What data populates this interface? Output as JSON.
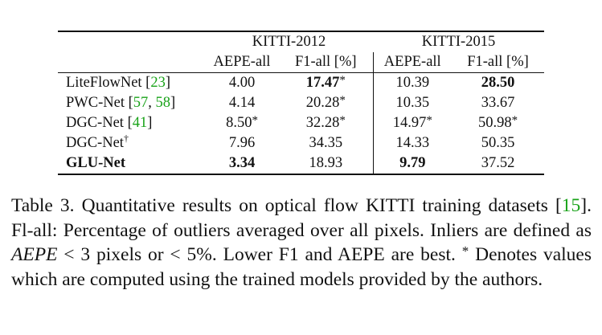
{
  "table": {
    "groups": [
      {
        "label": "KITTI-2012"
      },
      {
        "label": "KITTI-2015"
      }
    ],
    "subheaders": [
      "AEPE-all",
      "F1-all [%]",
      "AEPE-all",
      "F1-all [%]"
    ],
    "rows": [
      {
        "method": "LiteFlowNet",
        "cites": [
          "23"
        ],
        "dagger": false,
        "bold_method": false,
        "cells": [
          {
            "v": "4.00",
            "b": false,
            "s": false
          },
          {
            "v": "17.47",
            "b": true,
            "s": true
          },
          {
            "v": "10.39",
            "b": false,
            "s": false
          },
          {
            "v": "28.50",
            "b": true,
            "s": false
          }
        ]
      },
      {
        "method": "PWC-Net",
        "cites": [
          "57",
          "58"
        ],
        "dagger": false,
        "bold_method": false,
        "cells": [
          {
            "v": "4.14",
            "b": false,
            "s": false
          },
          {
            "v": "20.28",
            "b": false,
            "s": true
          },
          {
            "v": "10.35",
            "b": false,
            "s": false
          },
          {
            "v": "33.67",
            "b": false,
            "s": false
          }
        ]
      },
      {
        "method": "DGC-Net",
        "cites": [
          "41"
        ],
        "dagger": false,
        "bold_method": false,
        "cells": [
          {
            "v": "8.50",
            "b": false,
            "s": true
          },
          {
            "v": "32.28",
            "b": false,
            "s": true
          },
          {
            "v": "14.97",
            "b": false,
            "s": true
          },
          {
            "v": "50.98",
            "b": false,
            "s": true
          }
        ]
      },
      {
        "method": "DGC-Net",
        "cites": [],
        "dagger": true,
        "bold_method": false,
        "cells": [
          {
            "v": "7.96",
            "b": false,
            "s": false
          },
          {
            "v": "34.35",
            "b": false,
            "s": false
          },
          {
            "v": "14.33",
            "b": false,
            "s": false
          },
          {
            "v": "50.35",
            "b": false,
            "s": false
          }
        ]
      },
      {
        "method": "GLU-Net",
        "cites": [],
        "dagger": false,
        "bold_method": true,
        "cells": [
          {
            "v": "3.34",
            "b": true,
            "s": false
          },
          {
            "v": "18.93",
            "b": false,
            "s": false
          },
          {
            "v": "9.79",
            "b": true,
            "s": false
          },
          {
            "v": "37.52",
            "b": false,
            "s": false
          }
        ]
      }
    ]
  },
  "caption": {
    "p1": "Table 3. Quantitative results on optical flow KITTI training datasets [",
    "cite1": "15",
    "p2": "]. Fl-all: Percentage of outliers averaged over all pixels. Inliers are defined as ",
    "math1": "AEPE",
    "p3": " < 3 pixels or < 5%. Lower F1 and AEPE are best. ",
    "p4": " Denotes values which are computed using the trained models provided by the authors."
  }
}
